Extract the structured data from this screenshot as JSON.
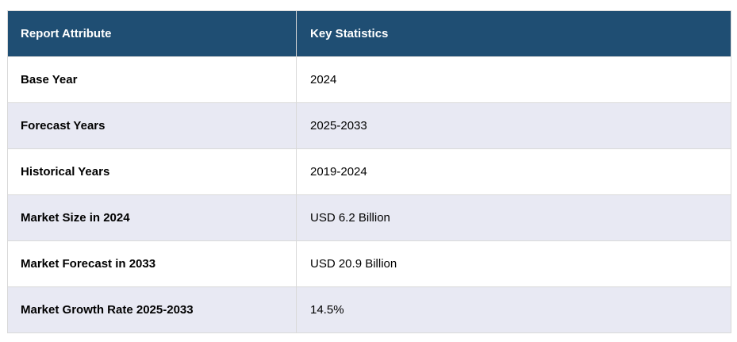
{
  "table": {
    "columns": [
      {
        "label": "Report Attribute"
      },
      {
        "label": "Key Statistics"
      }
    ],
    "rows": [
      {
        "attribute": "Base Year",
        "value": "2024"
      },
      {
        "attribute": "Forecast Years",
        "value": "2025-2033"
      },
      {
        "attribute": "Historical Years",
        "value": "2019-2024"
      },
      {
        "attribute": "Market Size in 2024",
        "value": "USD 6.2 Billion"
      },
      {
        "attribute": "Market Forecast in 2033",
        "value": "USD 20.9 Billion"
      },
      {
        "attribute": "Market Growth Rate 2025-2033",
        "value": "14.5%"
      }
    ]
  },
  "colors": {
    "header_background": "#1f4e73",
    "header_text": "#ffffff",
    "row_background": "#ffffff",
    "row_alt_background": "#e8e9f3",
    "border": "#d9d9d9",
    "body_text": "#000000"
  },
  "chart_data": {
    "type": "table",
    "columns": [
      "Report Attribute",
      "Key Statistics"
    ],
    "rows": [
      [
        "Base Year",
        "2024"
      ],
      [
        "Forecast Years",
        "2025-2033"
      ],
      [
        "Historical Years",
        "2019-2024"
      ],
      [
        "Market Size in 2024",
        "USD 6.2 Billion"
      ],
      [
        "Market Forecast in 2033",
        "USD 20.9 Billion"
      ],
      [
        "Market Growth Rate 2025-2033",
        "14.5%"
      ]
    ]
  }
}
